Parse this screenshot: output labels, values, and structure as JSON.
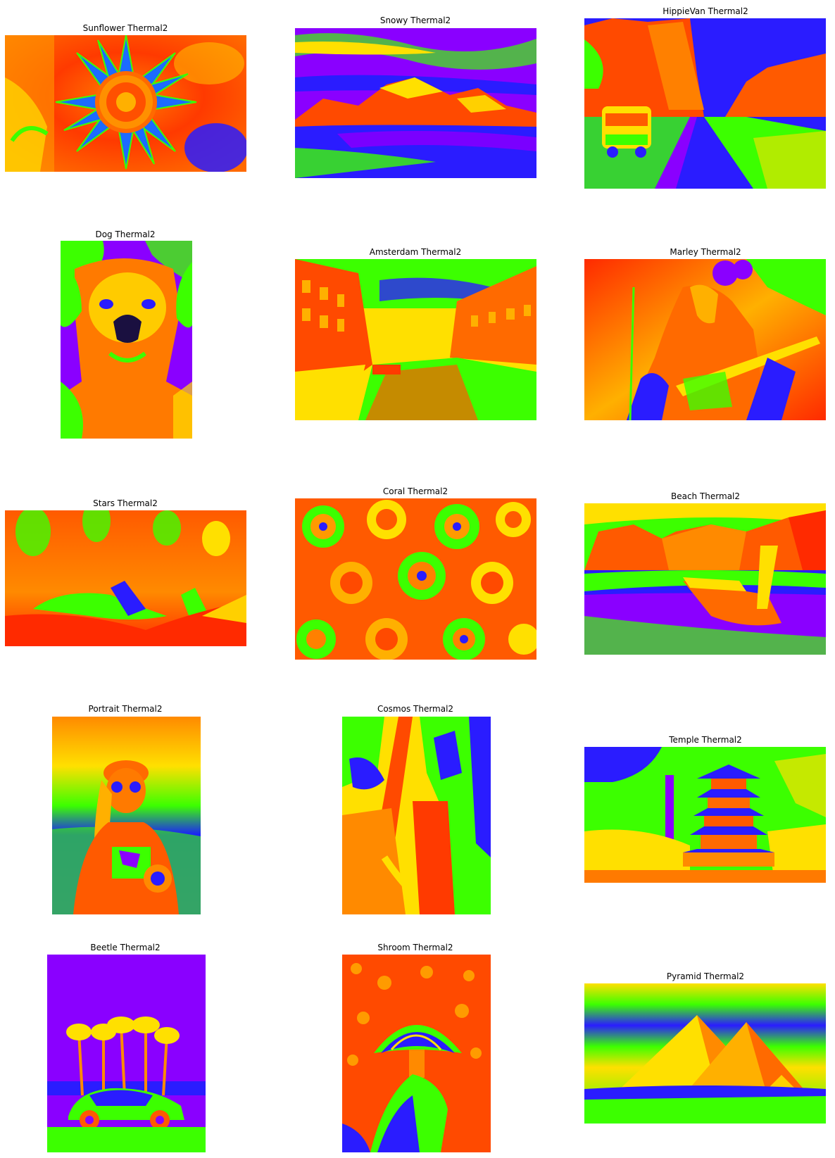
{
  "grid": {
    "panels": [
      {
        "title": "Sunflower Thermal2",
        "icon": "sunflower-thermal-image"
      },
      {
        "title": "Snowy Thermal2",
        "icon": "snowy-mountain-thermal-image"
      },
      {
        "title": "HippieVan Thermal2",
        "icon": "hippie-van-thermal-image"
      },
      {
        "title": "Dog Thermal2",
        "icon": "dog-thermal-image"
      },
      {
        "title": "Amsterdam Thermal2",
        "icon": "amsterdam-canal-thermal-image"
      },
      {
        "title": "Marley Thermal2",
        "icon": "guitarist-thermal-image"
      },
      {
        "title": "Stars Thermal2",
        "icon": "aurora-stars-thermal-image"
      },
      {
        "title": "Coral Thermal2",
        "icon": "coral-thermal-image"
      },
      {
        "title": "Beach Thermal2",
        "icon": "beach-boat-thermal-image"
      },
      {
        "title": "Portrait Thermal2",
        "icon": "portrait-thermal-image"
      },
      {
        "title": "Cosmos Thermal2",
        "icon": "cosmos-thermal-image"
      },
      {
        "title": "Temple Thermal2",
        "icon": "pagoda-temple-thermal-image"
      },
      {
        "title": "Beetle Thermal2",
        "icon": "beetle-car-palms-thermal-image"
      },
      {
        "title": "Shroom Thermal2",
        "icon": "mushroom-thermal-image"
      },
      {
        "title": "Pyramid Thermal2",
        "icon": "pyramids-thermal-image"
      }
    ]
  },
  "palette": {
    "red": "#ff2a00",
    "orange": "#ff8000",
    "yellow": "#ffe000",
    "green": "#3cff00",
    "blue": "#2a1cff",
    "violet": "#8a00ff"
  }
}
